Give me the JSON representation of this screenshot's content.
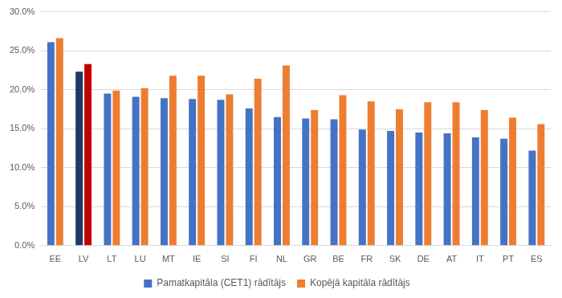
{
  "chart_data": {
    "type": "bar",
    "categories": [
      "EE",
      "LV",
      "LT",
      "LU",
      "MT",
      "IE",
      "SI",
      "FI",
      "NL",
      "GR",
      "BE",
      "FR",
      "SK",
      "DE",
      "AT",
      "IT",
      "PT",
      "ES"
    ],
    "series": [
      {
        "name": "Pamatkapitāla (CET1) rādītājs",
        "color": "#4472c4",
        "colors": [
          "#4472c4",
          "#1f3864",
          "#4472c4",
          "#4472c4",
          "#4472c4",
          "#4472c4",
          "#4472c4",
          "#4472c4",
          "#4472c4",
          "#4472c4",
          "#4472c4",
          "#4472c4",
          "#4472c4",
          "#4472c4",
          "#4472c4",
          "#4472c4",
          "#4472c4",
          "#4472c4"
        ],
        "values": [
          26.1,
          22.3,
          19.5,
          19.1,
          18.9,
          18.8,
          18.7,
          17.6,
          16.5,
          16.3,
          16.2,
          14.9,
          14.7,
          14.5,
          14.4,
          13.9,
          13.7,
          12.2
        ]
      },
      {
        "name": "Kopējā kapitāla rādītājs",
        "color": "#ed7d31",
        "colors": [
          "#ed7d31",
          "#c00000",
          "#ed7d31",
          "#ed7d31",
          "#ed7d31",
          "#ed7d31",
          "#ed7d31",
          "#ed7d31",
          "#ed7d31",
          "#ed7d31",
          "#ed7d31",
          "#ed7d31",
          "#ed7d31",
          "#ed7d31",
          "#ed7d31",
          "#ed7d31",
          "#ed7d31",
          "#ed7d31"
        ],
        "values": [
          26.6,
          23.3,
          19.9,
          20.2,
          21.8,
          21.8,
          19.4,
          21.4,
          23.1,
          17.4,
          19.3,
          18.5,
          17.5,
          18.4,
          18.4,
          17.4,
          16.4,
          15.6
        ]
      }
    ],
    "ylim": [
      0,
      30
    ],
    "yticks": [
      {
        "value": 0,
        "label": "0.0%"
      },
      {
        "value": 5,
        "label": "5.0%"
      },
      {
        "value": 10,
        "label": "10.0%"
      },
      {
        "value": 15,
        "label": "15.0%"
      },
      {
        "value": 20,
        "label": "20.0%"
      },
      {
        "value": 25,
        "label": "25.0%"
      },
      {
        "value": 30,
        "label": "30.0%"
      }
    ],
    "grid": true,
    "legend": "bottom"
  }
}
